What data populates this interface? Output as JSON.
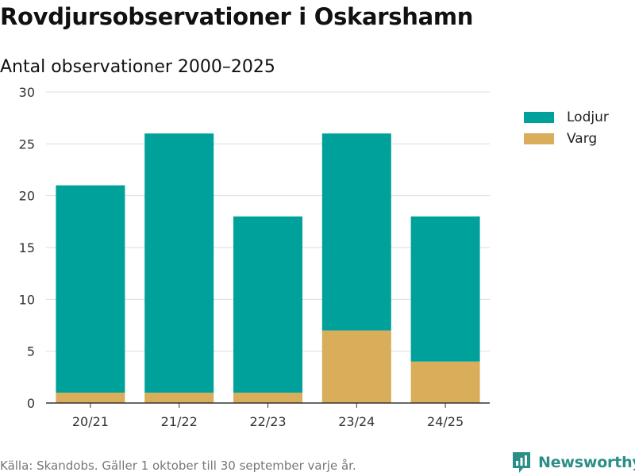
{
  "title": "Rovdjursobservationer i Oskarshamn",
  "subtitle": "Antal observationer 2000–2025",
  "source": "Källa: Skandobs. Gäller 1 oktober till 30 september varje år.",
  "brand": {
    "name": "Newsworthy",
    "icon": "newsworthy-logo-icon",
    "color": "#2b8f87"
  },
  "legend": [
    {
      "label": "Lodjur",
      "color": "#00a19a"
    },
    {
      "label": "Varg",
      "color": "#d9ad5a"
    }
  ],
  "chart_data": {
    "type": "bar",
    "stacked": true,
    "categories": [
      "20/21",
      "21/22",
      "22/23",
      "23/24",
      "24/25"
    ],
    "series": [
      {
        "name": "Varg",
        "color": "#d9ad5a",
        "values": [
          1,
          1,
          1,
          7,
          4
        ]
      },
      {
        "name": "Lodjur",
        "color": "#00a19a",
        "values": [
          20,
          25,
          17,
          19,
          14
        ]
      }
    ],
    "ylim": [
      0,
      30
    ],
    "yticks": [
      0,
      5,
      10,
      15,
      20,
      25,
      30
    ],
    "grid": true,
    "legend_position": "top-right"
  }
}
